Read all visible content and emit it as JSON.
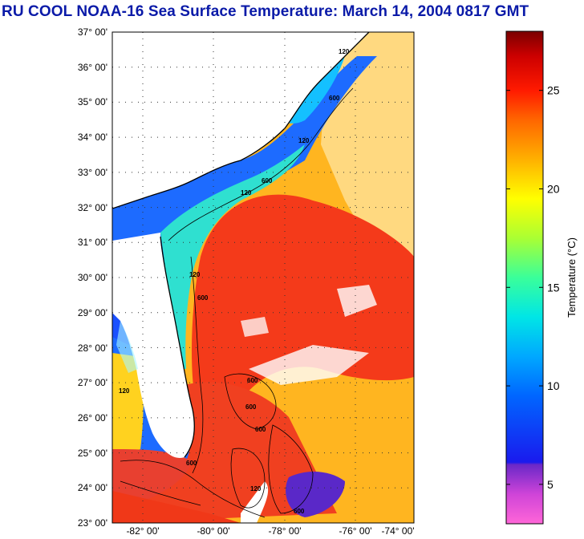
{
  "title": "RU COOL  NOAA-16  Sea Surface Temperature:  March 14, 2004 0817 GMT",
  "map": {
    "lat_labels": [
      "37° 00'",
      "36° 00'",
      "35° 00'",
      "34° 00'",
      "33° 00'",
      "32° 00'",
      "31° 00'",
      "30° 00'",
      "29° 00'",
      "28° 00'",
      "27° 00'",
      "26° 00'",
      "25° 00'",
      "24° 00'",
      "23° 00'"
    ],
    "lon_labels": [
      "-82° 00'",
      "-80° 00'",
      "-78° 00'",
      "-76° 00'",
      "-74° 00'"
    ],
    "contour_labels": [
      "120",
      "600",
      "120",
      "600",
      "120",
      "600",
      "120",
      "600",
      "600",
      "600",
      "600",
      "120",
      "120",
      "600"
    ]
  },
  "colorbar": {
    "label": "Temperature (°C)",
    "ticks": [
      "25",
      "20",
      "15",
      "10",
      "5"
    ],
    "tick_values": [
      25,
      20,
      15,
      10,
      5
    ],
    "range": [
      3,
      28
    ],
    "colors": {
      "land": "#ffffff",
      "cold_shelf": "#1d6bff",
      "gulf_stream": "#f43a1a",
      "offshore": "#ffd21f"
    }
  }
}
